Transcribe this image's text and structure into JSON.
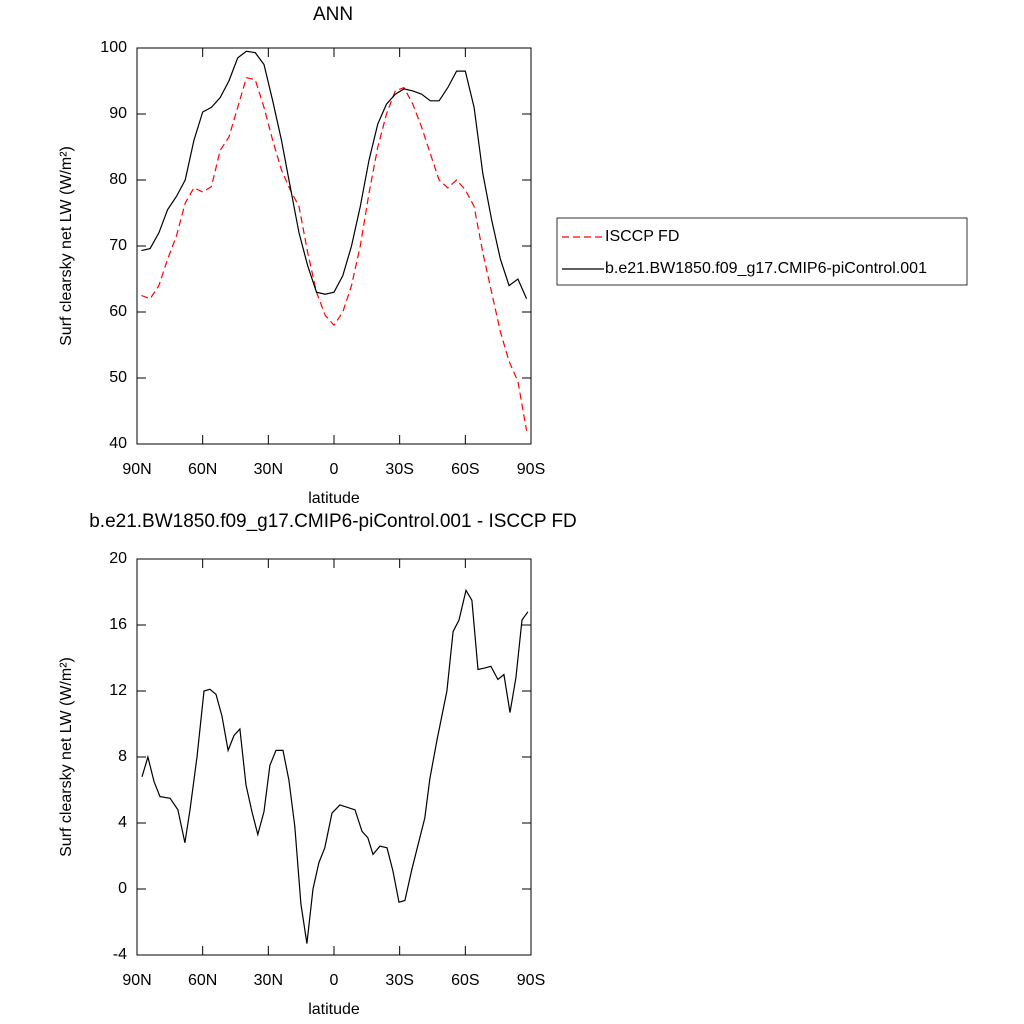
{
  "chart_data": [
    {
      "type": "line",
      "title": "ANN",
      "xlabel": "latitude",
      "ylabel": "Surf clearsky net LW (W/m²)",
      "x": [
        88,
        84,
        80,
        76,
        72,
        68,
        64,
        60,
        56,
        52,
        48,
        44,
        40,
        36,
        32,
        28,
        24,
        20,
        16,
        12,
        8,
        4,
        0,
        -4,
        -8,
        -12,
        -16,
        -20,
        -24,
        -28,
        -32,
        -36,
        -40,
        -44,
        -48,
        -52,
        -56,
        -60,
        -64,
        -68,
        -72,
        -76,
        -80,
        -84,
        -88
      ],
      "series": [
        {
          "name": "ISCCP FD",
          "color": "#ff0000",
          "style": "dashed",
          "values": [
            62.5,
            62,
            64,
            68,
            71.5,
            76.5,
            78.8,
            78.2,
            79,
            84.5,
            86.5,
            91,
            95.5,
            95.2,
            91,
            86,
            81.5,
            78.5,
            76,
            69,
            63,
            59.5,
            58,
            60,
            64,
            70,
            78,
            85,
            90,
            93.5,
            94,
            91.5,
            88,
            84,
            80,
            78.8,
            80,
            78.5,
            76,
            69,
            63,
            57,
            52.5,
            49.5,
            42
          ]
        },
        {
          "name": "b.e21.BW1850.f09_g17.CMIP6-piControl.001",
          "color": "#000000",
          "style": "solid",
          "values": [
            69.3,
            69.6,
            72,
            75.5,
            77.5,
            80,
            86,
            90.3,
            91,
            92.5,
            95,
            98.5,
            99.5,
            99.3,
            97.5,
            92,
            86,
            79,
            72,
            67,
            63,
            62.7,
            63,
            65.5,
            70,
            76,
            83,
            88.5,
            91.5,
            93,
            93.8,
            93.5,
            93,
            92,
            92,
            94,
            96.5,
            96.5,
            91,
            81,
            74,
            68,
            64,
            65,
            62
          ]
        }
      ],
      "xlim": [
        90,
        -90
      ],
      "xticks": [
        {
          "value": 90,
          "label": "90N"
        },
        {
          "value": 60,
          "label": "60N"
        },
        {
          "value": 30,
          "label": "30N"
        },
        0,
        {
          "value": -30,
          "label": "30S"
        },
        {
          "value": -60,
          "label": "60S"
        },
        {
          "value": -90,
          "label": "90S"
        }
      ],
      "ylim": [
        40,
        100
      ],
      "yticks": [
        40,
        50,
        60,
        70,
        80,
        90,
        100
      ],
      "legend": "right"
    },
    {
      "type": "line",
      "title": "b.e21.BW1850.f09_g17.CMIP6-piControl.001 - ISCCP FD",
      "xlabel": "latitude",
      "ylabel": "Surf clearsky net LW (W/m²)",
      "x": [
        87.7,
        85,
        82.2,
        79.5,
        74.9,
        71.3,
        68.1,
        65.8,
        62.6,
        59.4,
        56.7,
        53.9,
        51.2,
        48.4,
        45.7,
        43,
        40.2,
        37.5,
        34.8,
        32,
        29.3,
        26.5,
        23.3,
        20.6,
        17.9,
        15.1,
        12.4,
        9.6,
        6.9,
        4.2,
        0.9,
        -2.7,
        -9.6,
        -12.8,
        -15.5,
        -17.8,
        -21,
        -24.2,
        -26.9,
        -29.7,
        -32.4,
        -35.6,
        -41.5,
        -43.8,
        -47,
        -51.6,
        -54.4,
        -57.1,
        -60.3,
        -63,
        -65.8,
        -69,
        -71.7,
        -74.9,
        -77.6,
        -80.4,
        -83.1,
        -85.9,
        -88.6
      ],
      "values": [
        6.8,
        8,
        6.5,
        5.6,
        5.5,
        4.8,
        2.8,
        4.8,
        8,
        12,
        12.1,
        11.8,
        10.5,
        8.4,
        9.3,
        9.7,
        6.3,
        4.7,
        3.3,
        4.7,
        7.5,
        8.4,
        8.4,
        6.6,
        3.8,
        -0.9,
        -3.3,
        0,
        1.6,
        2.5,
        4.6,
        5.1,
        4.8,
        3.5,
        3.1,
        2.1,
        2.6,
        2.5,
        1.1,
        -0.8,
        -0.7,
        1.2,
        4.3,
        6.7,
        9,
        12,
        15.6,
        16.3,
        18.1,
        17.5,
        13.3,
        13.4,
        13.5,
        12.7,
        13,
        10.7,
        12.8,
        16.3,
        16.8
      ],
      "color": "#000000",
      "xlim": [
        90,
        -90
      ],
      "xticks": [
        {
          "value": 90,
          "label": "90N"
        },
        {
          "value": 60,
          "label": "60N"
        },
        {
          "value": 30,
          "label": "30N"
        },
        0,
        {
          "value": -30,
          "label": "30S"
        },
        {
          "value": -60,
          "label": "60S"
        },
        {
          "value": -90,
          "label": "90S"
        }
      ],
      "ylim": [
        -4,
        20
      ],
      "yticks": [
        -4,
        0,
        4,
        8,
        12,
        16,
        20
      ]
    }
  ]
}
